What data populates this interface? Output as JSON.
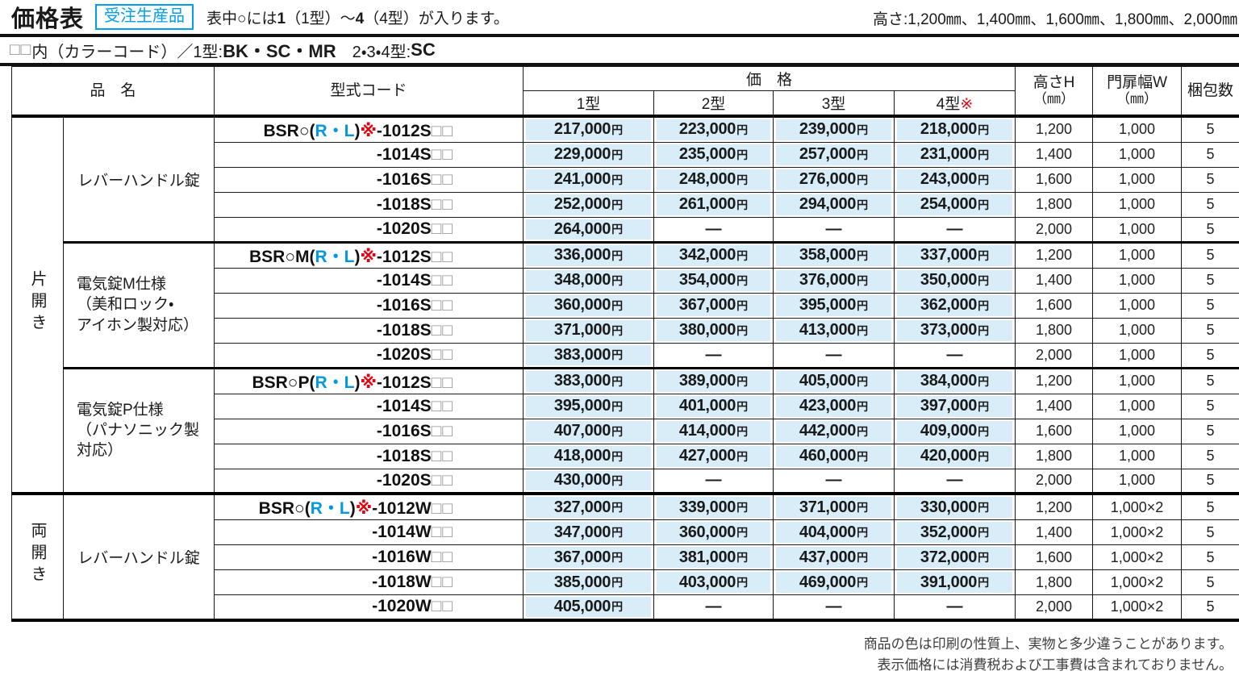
{
  "header": {
    "title": "価格表",
    "badge": "受注生産品",
    "note_parts": [
      [
        "表中○には",
        "n"
      ],
      [
        "1",
        "bold"
      ],
      [
        "（1型）～",
        "n"
      ],
      [
        "4",
        "bold"
      ],
      [
        "（4型）が入ります。",
        "n"
      ]
    ],
    "height_note": "高さ:1,200㎜、1,400㎜、1,600㎜、1,800㎜、2,000㎜",
    "colorcode_parts": [
      [
        "□□",
        "box"
      ],
      [
        "内（カラーコード）／1型:",
        "n"
      ],
      [
        "BK・SC・MR",
        "bold"
      ],
      [
        "　2・3・4型:",
        "n"
      ],
      [
        "SC",
        "bold"
      ]
    ]
  },
  "table": {
    "col_item": "品　名",
    "col_code": "型式コード",
    "col_price": "価　格",
    "price_types": [
      "1型",
      "2型",
      "3型",
      "4型※"
    ],
    "col_height": "高さH",
    "col_height_unit": "（㎜）",
    "col_width": "門扉幅W",
    "col_width_unit": "（㎜）",
    "col_pack": "梱包数",
    "yen": "円",
    "dash": "—",
    "sections": [
      {
        "orientation": "片開き",
        "groups": [
          {
            "name_lines": [
              "レバーハンドル錠"
            ],
            "rows": [
              {
                "code": [
                  [
                    "BSR○(",
                    "k"
                  ],
                  [
                    "R・L",
                    "blue"
                  ],
                  [
                    ")",
                    "k"
                  ],
                  [
                    "※",
                    "red"
                  ],
                  [
                    "-1012S",
                    "k"
                  ],
                  [
                    "□□",
                    "box"
                  ]
                ],
                "prices": [
                  "217,000",
                  "223,000",
                  "239,000",
                  "218,000"
                ],
                "h": "1,200",
                "w": "1,000",
                "pack": "5"
              },
              {
                "code": [
                  [
                    "-1014S",
                    "k"
                  ],
                  [
                    "□□",
                    "box"
                  ]
                ],
                "prices": [
                  "229,000",
                  "235,000",
                  "257,000",
                  "231,000"
                ],
                "h": "1,400",
                "w": "1,000",
                "pack": "5"
              },
              {
                "code": [
                  [
                    "-1016S",
                    "k"
                  ],
                  [
                    "□□",
                    "box"
                  ]
                ],
                "prices": [
                  "241,000",
                  "248,000",
                  "276,000",
                  "243,000"
                ],
                "h": "1,600",
                "w": "1,000",
                "pack": "5"
              },
              {
                "code": [
                  [
                    "-1018S",
                    "k"
                  ],
                  [
                    "□□",
                    "box"
                  ]
                ],
                "prices": [
                  "252,000",
                  "261,000",
                  "294,000",
                  "254,000"
                ],
                "h": "1,800",
                "w": "1,000",
                "pack": "5"
              },
              {
                "code": [
                  [
                    "-1020S",
                    "k"
                  ],
                  [
                    "□□",
                    "box"
                  ]
                ],
                "prices": [
                  "264,000",
                  "—",
                  "—",
                  "—"
                ],
                "h": "2,000",
                "w": "1,000",
                "pack": "5"
              }
            ]
          },
          {
            "name_lines": [
              "電気錠M仕様",
              "（美和ロック・",
              "アイホン製対応）"
            ],
            "rows": [
              {
                "code": [
                  [
                    "BSR○M(",
                    "k"
                  ],
                  [
                    "R・L",
                    "blue"
                  ],
                  [
                    ")",
                    "k"
                  ],
                  [
                    "※",
                    "red"
                  ],
                  [
                    "-1012S",
                    "k"
                  ],
                  [
                    "□□",
                    "box"
                  ]
                ],
                "prices": [
                  "336,000",
                  "342,000",
                  "358,000",
                  "337,000"
                ],
                "h": "1,200",
                "w": "1,000",
                "pack": "5"
              },
              {
                "code": [
                  [
                    "-1014S",
                    "k"
                  ],
                  [
                    "□□",
                    "box"
                  ]
                ],
                "prices": [
                  "348,000",
                  "354,000",
                  "376,000",
                  "350,000"
                ],
                "h": "1,400",
                "w": "1,000",
                "pack": "5"
              },
              {
                "code": [
                  [
                    "-1016S",
                    "k"
                  ],
                  [
                    "□□",
                    "box"
                  ]
                ],
                "prices": [
                  "360,000",
                  "367,000",
                  "395,000",
                  "362,000"
                ],
                "h": "1,600",
                "w": "1,000",
                "pack": "5"
              },
              {
                "code": [
                  [
                    "-1018S",
                    "k"
                  ],
                  [
                    "□□",
                    "box"
                  ]
                ],
                "prices": [
                  "371,000",
                  "380,000",
                  "413,000",
                  "373,000"
                ],
                "h": "1,800",
                "w": "1,000",
                "pack": "5"
              },
              {
                "code": [
                  [
                    "-1020S",
                    "k"
                  ],
                  [
                    "□□",
                    "box"
                  ]
                ],
                "prices": [
                  "383,000",
                  "—",
                  "—",
                  "—"
                ],
                "h": "2,000",
                "w": "1,000",
                "pack": "5"
              }
            ]
          },
          {
            "name_lines": [
              "電気錠P仕様",
              "（パナソニック製",
              "対応）"
            ],
            "rows": [
              {
                "code": [
                  [
                    "BSR○P(",
                    "k"
                  ],
                  [
                    "R・L",
                    "blue"
                  ],
                  [
                    ")",
                    "k"
                  ],
                  [
                    "※",
                    "red"
                  ],
                  [
                    "-1012S",
                    "k"
                  ],
                  [
                    "□□",
                    "box"
                  ]
                ],
                "prices": [
                  "383,000",
                  "389,000",
                  "405,000",
                  "384,000"
                ],
                "h": "1,200",
                "w": "1,000",
                "pack": "5"
              },
              {
                "code": [
                  [
                    "-1014S",
                    "k"
                  ],
                  [
                    "□□",
                    "box"
                  ]
                ],
                "prices": [
                  "395,000",
                  "401,000",
                  "423,000",
                  "397,000"
                ],
                "h": "1,400",
                "w": "1,000",
                "pack": "5"
              },
              {
                "code": [
                  [
                    "-1016S",
                    "k"
                  ],
                  [
                    "□□",
                    "box"
                  ]
                ],
                "prices": [
                  "407,000",
                  "414,000",
                  "442,000",
                  "409,000"
                ],
                "h": "1,600",
                "w": "1,000",
                "pack": "5"
              },
              {
                "code": [
                  [
                    "-1018S",
                    "k"
                  ],
                  [
                    "□□",
                    "box"
                  ]
                ],
                "prices": [
                  "418,000",
                  "427,000",
                  "460,000",
                  "420,000"
                ],
                "h": "1,800",
                "w": "1,000",
                "pack": "5"
              },
              {
                "code": [
                  [
                    "-1020S",
                    "k"
                  ],
                  [
                    "□□",
                    "box"
                  ]
                ],
                "prices": [
                  "430,000",
                  "—",
                  "—",
                  "—"
                ],
                "h": "2,000",
                "w": "1,000",
                "pack": "5"
              }
            ]
          }
        ]
      },
      {
        "orientation": "両開き",
        "groups": [
          {
            "name_lines": [
              "レバーハンドル錠"
            ],
            "rows": [
              {
                "code": [
                  [
                    "BSR○(",
                    "k"
                  ],
                  [
                    "R・L",
                    "blue"
                  ],
                  [
                    ")",
                    "k"
                  ],
                  [
                    "※",
                    "red"
                  ],
                  [
                    "-1012W",
                    "k"
                  ],
                  [
                    "□□",
                    "box"
                  ]
                ],
                "prices": [
                  "327,000",
                  "339,000",
                  "371,000",
                  "330,000"
                ],
                "h": "1,200",
                "w": "1,000×2",
                "pack": "5"
              },
              {
                "code": [
                  [
                    "-1014W",
                    "k"
                  ],
                  [
                    "□□",
                    "box"
                  ]
                ],
                "prices": [
                  "347,000",
                  "360,000",
                  "404,000",
                  "352,000"
                ],
                "h": "1,400",
                "w": "1,000×2",
                "pack": "5"
              },
              {
                "code": [
                  [
                    "-1016W",
                    "k"
                  ],
                  [
                    "□□",
                    "box"
                  ]
                ],
                "prices": [
                  "367,000",
                  "381,000",
                  "437,000",
                  "372,000"
                ],
                "h": "1,600",
                "w": "1,000×2",
                "pack": "5"
              },
              {
                "code": [
                  [
                    "-1018W",
                    "k"
                  ],
                  [
                    "□□",
                    "box"
                  ]
                ],
                "prices": [
                  "385,000",
                  "403,000",
                  "469,000",
                  "391,000"
                ],
                "h": "1,800",
                "w": "1,000×2",
                "pack": "5"
              },
              {
                "code": [
                  [
                    "-1020W",
                    "k"
                  ],
                  [
                    "□□",
                    "box"
                  ]
                ],
                "prices": [
                  "405,000",
                  "—",
                  "—",
                  "—"
                ],
                "h": "2,000",
                "w": "1,000×2",
                "pack": "5"
              }
            ]
          }
        ]
      }
    ]
  },
  "footer": {
    "lines": [
      "商品の色は印刷の性質上、実物と多少違うことがあります。",
      "表示価格には消費税および工事費は含まれておりません。"
    ]
  },
  "colors": {
    "accent_blue": "#00a0e9",
    "mark_red": "#e60012",
    "price_cell_bg": "#d9edf9",
    "line_black": "#111111"
  }
}
